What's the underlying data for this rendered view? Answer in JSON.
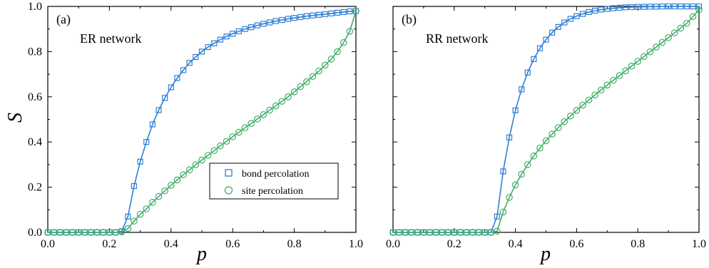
{
  "figure": {
    "y_axis_title": "S",
    "x_axis_title": "p"
  },
  "legend": {
    "bond_label": "bond percolation",
    "site_label": "site percolation"
  },
  "colors": {
    "bond": "#2f7fd6",
    "site": "#3fae68"
  },
  "chart_data": [
    {
      "type": "line",
      "panel_label": "(a)",
      "network_label": "ER network",
      "title": "",
      "xlabel": "p",
      "ylabel": "S",
      "xlim": [
        0,
        1
      ],
      "ylim": [
        0,
        1
      ],
      "xticks": [
        "0.0",
        "0.2",
        "0.4",
        "0.6",
        "0.8",
        "1.0"
      ],
      "yticks": [
        "0.0",
        "0.2",
        "0.4",
        "0.6",
        "0.8",
        "1.0"
      ],
      "legend_position": "lower-right",
      "p_c": {
        "bond": 0.25,
        "site": 0.25
      },
      "x": [
        0.0,
        0.02,
        0.04,
        0.06,
        0.08,
        0.1,
        0.12,
        0.14,
        0.16,
        0.18,
        0.2,
        0.22,
        0.24,
        0.26,
        0.28,
        0.3,
        0.32,
        0.34,
        0.36,
        0.38,
        0.4,
        0.42,
        0.44,
        0.46,
        0.48,
        0.5,
        0.52,
        0.54,
        0.56,
        0.58,
        0.6,
        0.62,
        0.64,
        0.66,
        0.68,
        0.7,
        0.72,
        0.74,
        0.76,
        0.78,
        0.8,
        0.82,
        0.84,
        0.86,
        0.88,
        0.9,
        0.92,
        0.94,
        0.96,
        0.98,
        1.0
      ],
      "series": [
        {
          "name": "bond percolation",
          "marker": "square",
          "values": [
            0.0,
            0.0,
            0.0,
            0.0,
            0.0,
            0.0,
            0.0,
            0.0,
            0.0,
            0.0,
            0.0,
            0.0,
            0.005,
            0.07,
            0.205,
            0.313,
            0.4,
            0.478,
            0.541,
            0.595,
            0.642,
            0.683,
            0.718,
            0.75,
            0.776,
            0.8,
            0.82,
            0.837,
            0.853,
            0.867,
            0.879,
            0.89,
            0.9,
            0.908,
            0.916,
            0.923,
            0.929,
            0.935,
            0.94,
            0.945,
            0.949,
            0.953,
            0.957,
            0.96,
            0.963,
            0.966,
            0.969,
            0.972,
            0.975,
            0.978,
            0.98
          ]
        },
        {
          "name": "site percolation",
          "marker": "circle",
          "values": [
            0.0,
            0.0,
            0.0,
            0.0,
            0.0,
            0.0,
            0.0,
            0.0,
            0.0,
            0.0,
            0.0,
            0.0,
            0.002,
            0.017,
            0.05,
            0.08,
            0.104,
            0.133,
            0.159,
            0.184,
            0.208,
            0.232,
            0.255,
            0.277,
            0.299,
            0.32,
            0.341,
            0.362,
            0.383,
            0.403,
            0.423,
            0.443,
            0.463,
            0.482,
            0.502,
            0.521,
            0.541,
            0.56,
            0.58,
            0.6,
            0.622,
            0.645,
            0.667,
            0.69,
            0.714,
            0.74,
            0.767,
            0.8,
            0.84,
            0.89,
            0.98
          ]
        }
      ]
    },
    {
      "type": "line",
      "panel_label": "(b)",
      "network_label": "RR network",
      "title": "",
      "xlabel": "p",
      "ylabel": "",
      "xlim": [
        0,
        1
      ],
      "ylim": [
        0,
        1
      ],
      "xticks": [
        "0.0",
        "0.2",
        "0.4",
        "0.6",
        "0.8",
        "1.0"
      ],
      "yticks": [],
      "legend_position": "none",
      "p_c": {
        "bond": 0.333,
        "site": 0.333
      },
      "x": [
        0.0,
        0.02,
        0.04,
        0.06,
        0.08,
        0.1,
        0.12,
        0.14,
        0.16,
        0.18,
        0.2,
        0.22,
        0.24,
        0.26,
        0.28,
        0.3,
        0.32,
        0.34,
        0.36,
        0.38,
        0.4,
        0.42,
        0.44,
        0.46,
        0.48,
        0.5,
        0.52,
        0.54,
        0.56,
        0.58,
        0.6,
        0.62,
        0.64,
        0.66,
        0.68,
        0.7,
        0.72,
        0.74,
        0.76,
        0.78,
        0.8,
        0.82,
        0.84,
        0.86,
        0.88,
        0.9,
        0.92,
        0.94,
        0.96,
        0.98,
        1.0
      ],
      "series": [
        {
          "name": "bond percolation",
          "marker": "square",
          "values": [
            0.0,
            0.0,
            0.0,
            0.0,
            0.0,
            0.0,
            0.0,
            0.0,
            0.0,
            0.0,
            0.0,
            0.0,
            0.0,
            0.0,
            0.0,
            0.0,
            0.0,
            0.07,
            0.27,
            0.42,
            0.54,
            0.633,
            0.707,
            0.767,
            0.815,
            0.853,
            0.884,
            0.909,
            0.929,
            0.945,
            0.957,
            0.967,
            0.975,
            0.981,
            0.986,
            0.989,
            0.992,
            0.994,
            0.996,
            0.997,
            0.998,
            0.998,
            0.999,
            0.999,
            1.0,
            1.0,
            1.0,
            1.0,
            1.0,
            1.0,
            1.0
          ]
        },
        {
          "name": "site percolation",
          "marker": "circle",
          "values": [
            0.0,
            0.0,
            0.0,
            0.0,
            0.0,
            0.0,
            0.0,
            0.0,
            0.0,
            0.0,
            0.0,
            0.0,
            0.0,
            0.0,
            0.0,
            0.0,
            0.0,
            0.005,
            0.09,
            0.155,
            0.21,
            0.257,
            0.3,
            0.338,
            0.373,
            0.405,
            0.435,
            0.463,
            0.49,
            0.515,
            0.54,
            0.563,
            0.586,
            0.608,
            0.63,
            0.652,
            0.673,
            0.694,
            0.715,
            0.736,
            0.757,
            0.778,
            0.799,
            0.82,
            0.841,
            0.862,
            0.883,
            0.904,
            0.925,
            0.955,
            0.985
          ]
        }
      ]
    }
  ]
}
